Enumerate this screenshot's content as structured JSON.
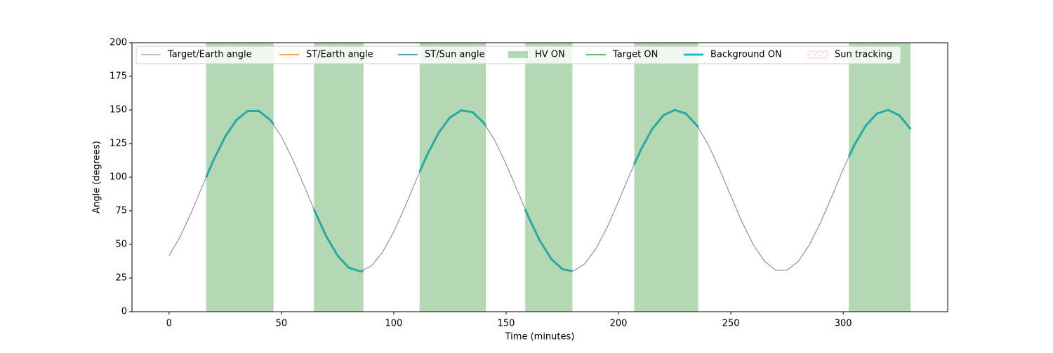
{
  "chart_data": {
    "type": "line",
    "xlabel": "Time (minutes)",
    "ylabel": "Angle (degrees)",
    "xlim": [
      -16.5,
      346.5
    ],
    "ylim": [
      0,
      200
    ],
    "xticks": [
      0,
      50,
      100,
      150,
      200,
      250,
      300
    ],
    "yticks": [
      0,
      25,
      50,
      75,
      100,
      125,
      150,
      175,
      200
    ],
    "legend": "upper center",
    "series": [
      {
        "name": "Target/Earth angle",
        "kind": "line",
        "color": "#808080",
        "linewidth": 1,
        "x": [
          0,
          5,
          10,
          15,
          20,
          25,
          30,
          35,
          40,
          45,
          50,
          55,
          60,
          65,
          70,
          75,
          80,
          85,
          90,
          95,
          100,
          105,
          110,
          115,
          120,
          125,
          130,
          135,
          140,
          145,
          150,
          155,
          160,
          165,
          170,
          175,
          180,
          185,
          190,
          195,
          200,
          205,
          210,
          215,
          220,
          225,
          230,
          235,
          240,
          245,
          250,
          255,
          260,
          265,
          270,
          275,
          280,
          285,
          290,
          295,
          300,
          305,
          310,
          315,
          320,
          325,
          330
        ],
        "values": [
          41.7,
          56.0,
          74.1,
          94.0,
          113.4,
          130.2,
          142.6,
          149.2,
          149.2,
          142.6,
          130.2,
          113.4,
          94.0,
          74.1,
          56.0,
          41.7,
          32.7,
          30.0,
          34.0,
          44.2,
          59.4,
          78.0,
          98.0,
          117.1,
          133.1,
          144.4,
          149.7,
          148.4,
          140.6,
          127.2,
          109.7,
          90.0,
          70.3,
          52.8,
          39.4,
          31.6,
          30.3,
          35.6,
          46.9,
          62.9,
          82.0,
          102.0,
          120.6,
          135.8,
          146.0,
          150.0,
          147.3,
          138.3,
          124.0,
          105.9,
          86.0,
          66.6,
          49.8,
          37.4,
          30.8,
          30.8,
          37.4,
          49.8,
          66.6,
          86.0,
          105.9,
          124.0,
          138.3,
          147.3,
          150.0,
          146.0,
          135.8
        ]
      },
      {
        "name": "ST/Earth angle",
        "kind": "line",
        "color": "#ff7f0e",
        "linewidth": 1.5,
        "x": [],
        "values": []
      },
      {
        "name": "ST/Sun angle",
        "kind": "line",
        "color": "#1f77b4",
        "linewidth": 1.5,
        "x": [],
        "values": []
      },
      {
        "name": "HV ON",
        "kind": "band",
        "color": "#b3d8b3",
        "spans": [
          [
            16.5,
            46.5
          ],
          [
            64.5,
            86.5
          ],
          [
            111.5,
            141
          ],
          [
            158.5,
            179.5
          ],
          [
            207,
            235.5
          ],
          [
            302.5,
            330
          ]
        ]
      },
      {
        "name": "Target ON",
        "kind": "line",
        "color": "#2ca02c",
        "linewidth": 1.5,
        "x": [],
        "values": []
      },
      {
        "name": "Background ON",
        "kind": "line",
        "color": "#2aa8a4",
        "linewidth": 3,
        "x": [
          16.5,
          20,
          25,
          30,
          35,
          40,
          45,
          46.5,
          55,
          64.5,
          65,
          70,
          75,
          80,
          85,
          86.5,
          100,
          111.5,
          115,
          120,
          125,
          130,
          135,
          140,
          141,
          150,
          158.5,
          160,
          165,
          170,
          175,
          179.5,
          195,
          207,
          210,
          215,
          220,
          225,
          230,
          235,
          235.5,
          270,
          302.5,
          305,
          310,
          315,
          320,
          325,
          330
        ],
        "values": [
          100.0,
          113.4,
          130.2,
          142.6,
          149.2,
          149.2,
          142.6,
          139.5,
          null,
          76.1,
          74.1,
          56.0,
          41.7,
          32.7,
          30.0,
          30.5,
          null,
          103.9,
          117.1,
          133.1,
          144.4,
          149.7,
          148.4,
          140.6,
          138.3,
          null,
          76.1,
          70.3,
          52.8,
          39.4,
          31.6,
          30.1,
          null,
          109.7,
          120.6,
          135.8,
          146.0,
          150.0,
          147.3,
          138.3,
          137.1,
          null,
          115.3,
          124.0,
          138.3,
          147.3,
          150.0,
          146.0,
          135.8
        ]
      },
      {
        "name": "Sun tracking",
        "kind": "band",
        "color": "#ffd6d6",
        "hatch": true,
        "spans": []
      }
    ]
  }
}
